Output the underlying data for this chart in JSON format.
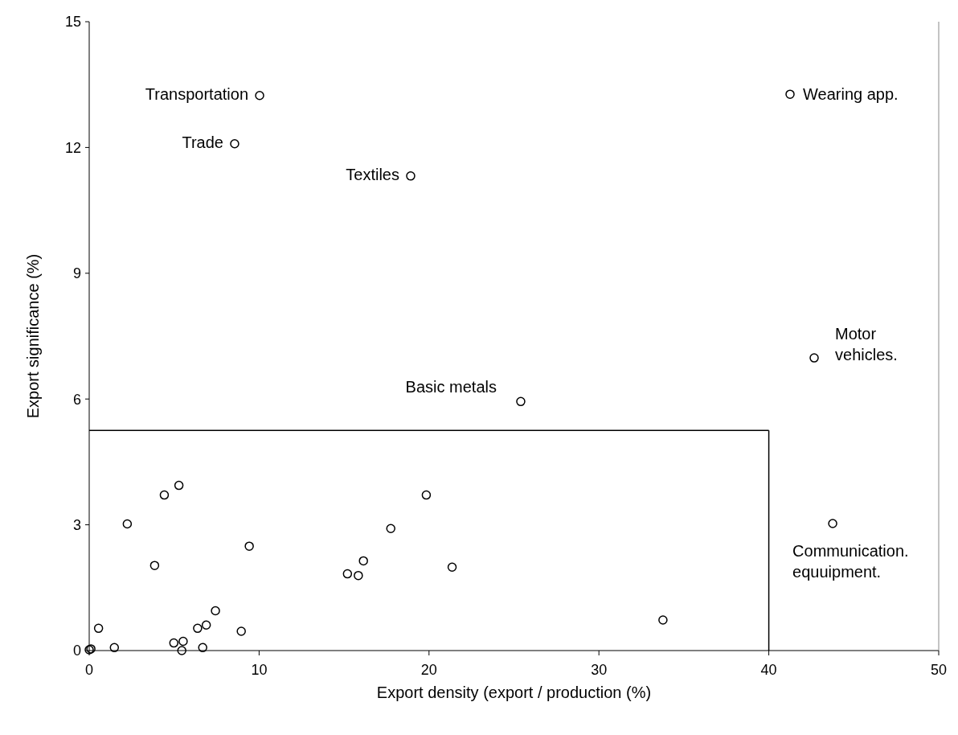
{
  "chart_data": {
    "type": "scatter",
    "xlabel": "Export density (export / production (%)",
    "ylabel": "Export significance (%)",
    "xlim": [
      0,
      50
    ],
    "xticks": [
      0,
      10,
      20,
      30,
      40,
      50
    ],
    "ylim": [
      0,
      15
    ],
    "yticks": [
      0,
      3,
      6,
      9,
      12,
      15
    ],
    "grid": false,
    "marker": "circle",
    "series": [
      {
        "color": "#000000",
        "x": [
          0,
          0.1,
          0.55,
          1.48,
          2.24,
          3.85,
          4.42,
          5.28,
          4.98,
          5.53,
          5.45,
          6.38,
          6.89,
          6.68,
          7.43,
          8.95,
          9.42,
          15.2,
          15.84,
          16.14,
          17.75,
          19.84,
          21.36,
          33.77,
          25.4,
          42.67,
          43.76,
          41.25,
          10.03,
          8.56,
          18.92
        ],
        "values": [
          0.02,
          0.04,
          0.53,
          0.07,
          3.02,
          2.03,
          3.71,
          3.94,
          0.18,
          0.22,
          0,
          0.53,
          0.61,
          0.07,
          0.95,
          0.46,
          2.49,
          1.83,
          1.79,
          2.14,
          2.91,
          3.71,
          1.99,
          0.73,
          5.94,
          6.98,
          3.03,
          13.27,
          13.24,
          12.09,
          11.32
        ]
      }
    ],
    "ref_lines": [
      {
        "axis": "y",
        "value": 5.25
      },
      {
        "axis": "x",
        "value": 40
      }
    ],
    "annotations": [
      {
        "text": "Transportation",
        "x": 10.03,
        "y": 13.24
      },
      {
        "text": "Trade",
        "x": 8.56,
        "y": 12.09
      },
      {
        "text": "Textiles",
        "x": 18.92,
        "y": 11.32
      },
      {
        "text": "Basic metals",
        "x": 25.4,
        "y": 5.94
      },
      {
        "text": "Wearing app.",
        "x": 41.25,
        "y": 13.27
      },
      {
        "text": "Motor\nvehicles.",
        "x": 42.67,
        "y": 6.98
      },
      {
        "text": "Communication.\nequuipment.",
        "x": 43.76,
        "y": 3.03
      }
    ]
  }
}
